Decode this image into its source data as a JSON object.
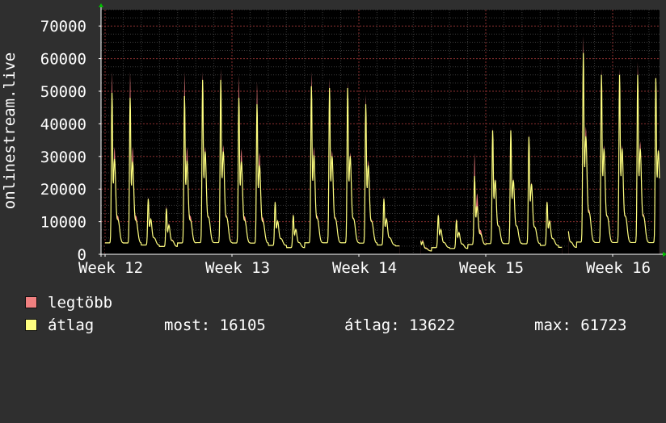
{
  "chart_data": {
    "type": "area",
    "ylabel": "onlinestream.live",
    "xlabel": "",
    "ylim": [
      0,
      75000
    ],
    "yticks": [
      0,
      10000,
      20000,
      30000,
      40000,
      50000,
      60000,
      70000
    ],
    "ytick_labels": [
      "0",
      "10000",
      "20000",
      "30000",
      "40000",
      "50000",
      "60000",
      "70000"
    ],
    "x_range_days": [
      0,
      35
    ],
    "xticks": [
      {
        "day": 0,
        "label": "Week 12"
      },
      {
        "day": 7,
        "label": "Week 13"
      },
      {
        "day": 14,
        "label": "Week 14"
      },
      {
        "day": 21,
        "label": "Week 15"
      },
      {
        "day": 28,
        "label": "Week 16"
      }
    ],
    "grid": true,
    "gaps": [
      [
        16.25,
        17.4
      ],
      [
        25.2,
        25.55
      ]
    ],
    "series": [
      {
        "name": "legtöbb",
        "color": "#f08080",
        "daily_peaks": [
          56000,
          56000,
          17500,
          15000,
          56000,
          56000,
          57000,
          55000,
          53000,
          16500,
          12500,
          56000,
          54000,
          53000,
          49000,
          18000,
          16000,
          7000,
          12500,
          11000,
          31000,
          39000,
          39000,
          37000,
          16500,
          13000,
          67000,
          57000,
          57000,
          59000,
          55000,
          17500
        ]
      },
      {
        "name": "átlag",
        "color": "#ffff80",
        "daily_peaks": [
          49500,
          48000,
          17000,
          14000,
          48500,
          53500,
          53500,
          48000,
          46000,
          16000,
          12000,
          51500,
          51000,
          51000,
          46000,
          17000,
          15000,
          6000,
          12000,
          10500,
          24000,
          38000,
          38000,
          36000,
          16000,
          12500,
          61723,
          55000,
          55000,
          55000,
          54000,
          16105
        ]
      }
    ]
  },
  "legend": {
    "max_label": "legtöbb",
    "avg_label": "átlag",
    "now": "most: 16105",
    "avg": "átlag: 13622",
    "max": "max: 61723"
  }
}
